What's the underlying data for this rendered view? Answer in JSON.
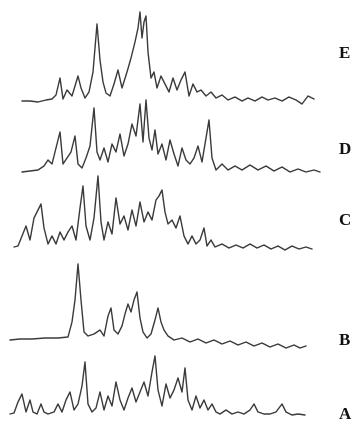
{
  "figure": {
    "traces": [
      {
        "id": "E",
        "label": "E"
      },
      {
        "id": "D",
        "label": "D"
      },
      {
        "id": "C",
        "label": "C"
      },
      {
        "id": "B",
        "label": "B"
      },
      {
        "id": "A",
        "label": "A"
      }
    ],
    "colors": {
      "trace": "#3a3a3a",
      "label": "#111111",
      "background": "#ffffff"
    }
  }
}
